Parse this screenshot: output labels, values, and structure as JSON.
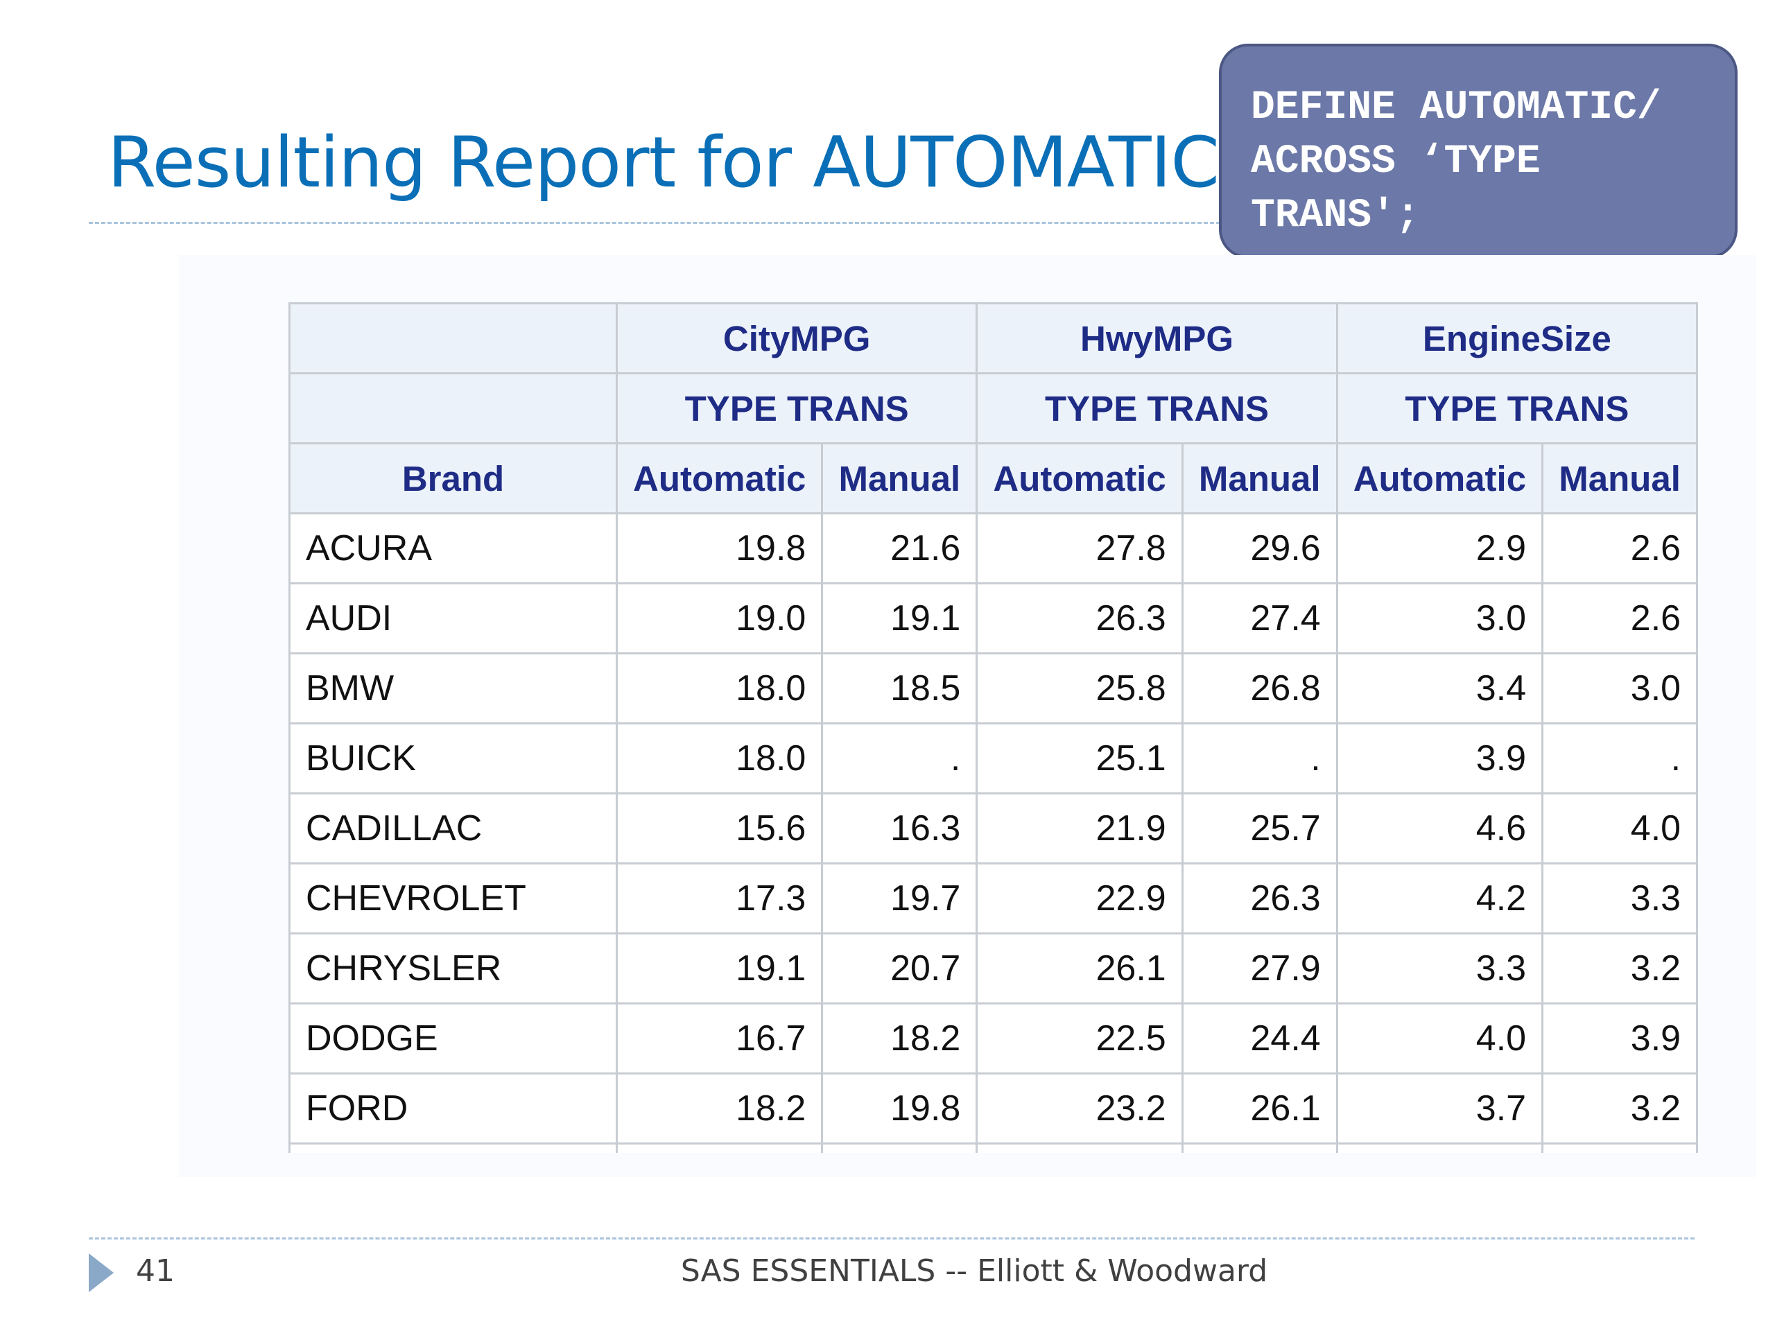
{
  "slide": {
    "title": "Resulting Report for AUTOMATIC",
    "page_number": "41",
    "footer": "SAS ESSENTIALS -- Elliott & Woodward"
  },
  "callout": {
    "lines": [
      "DEFINE AUTOMATIC/",
      "ACROSS ‘TYPE",
      "TRANS';"
    ]
  },
  "report": {
    "groups": [
      "CityMPG",
      "HwyMPG",
      "EngineSize"
    ],
    "across_label": "TYPE TRANS",
    "brand_header": "Brand",
    "sub_headers": [
      "Automatic",
      "Manual"
    ],
    "rows": [
      {
        "brand": "ACURA",
        "values": [
          "19.8",
          "21.6",
          "27.8",
          "29.6",
          "2.9",
          "2.6"
        ]
      },
      {
        "brand": "AUDI",
        "values": [
          "19.0",
          "19.1",
          "26.3",
          "27.4",
          "3.0",
          "2.6"
        ]
      },
      {
        "brand": "BMW",
        "values": [
          "18.0",
          "18.5",
          "25.8",
          "26.8",
          "3.4",
          "3.0"
        ]
      },
      {
        "brand": "BUICK",
        "values": [
          "18.0",
          ".",
          "25.1",
          ".",
          "3.9",
          "."
        ]
      },
      {
        "brand": "CADILLAC",
        "values": [
          "15.6",
          "16.3",
          "21.9",
          "25.7",
          "4.6",
          "4.0"
        ]
      },
      {
        "brand": "CHEVROLET",
        "values": [
          "17.3",
          "19.7",
          "22.9",
          "26.3",
          "4.2",
          "3.3"
        ]
      },
      {
        "brand": "CHRYSLER",
        "values": [
          "19.1",
          "20.7",
          "26.1",
          "27.9",
          "3.3",
          "3.2"
        ]
      },
      {
        "brand": "DODGE",
        "values": [
          "16.7",
          "18.2",
          "22.5",
          "24.4",
          "4.0",
          "3.9"
        ]
      },
      {
        "brand": "FORD",
        "values": [
          "18.2",
          "19.8",
          "23.2",
          "26.1",
          "3.7",
          "3.2"
        ]
      }
    ]
  },
  "colors": {
    "title": "#0a6fb7",
    "header_text": "#1e2c86",
    "header_bg": "#ecf2fa",
    "callout_bg": "#6b78a8",
    "grid": "#c8ccd3"
  }
}
